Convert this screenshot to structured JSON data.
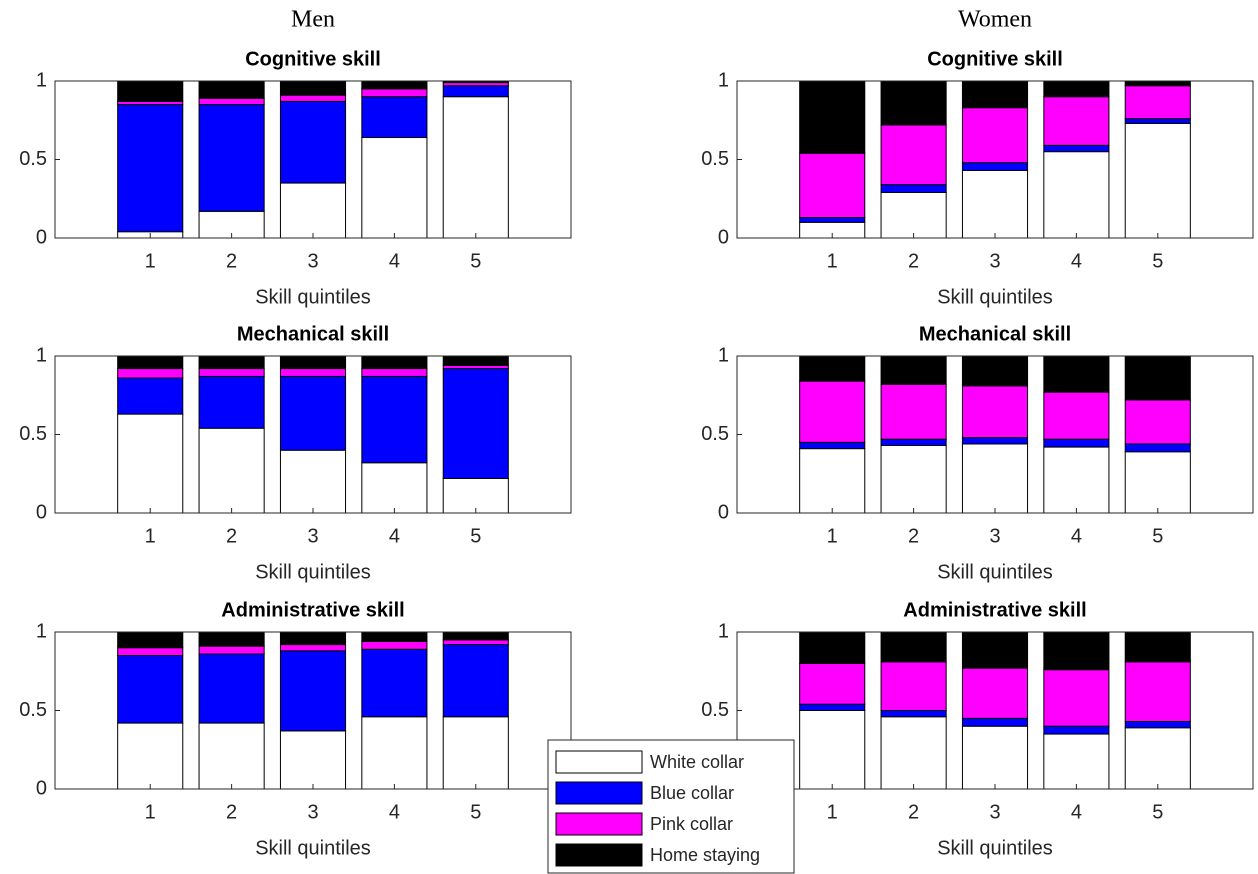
{
  "chart_data": [
    {
      "type": "stacked_bar",
      "subtitle": "Men",
      "title": "Cognitive skill",
      "xlabel": "Skill quintiles",
      "categories": [
        "1",
        "2",
        "3",
        "4",
        "5"
      ],
      "ylim": [
        0,
        1
      ],
      "yticks": [
        0,
        0.5,
        1
      ],
      "series": [
        {
          "name": "White collar",
          "color": "#ffffff",
          "values": [
            0.04,
            0.17,
            0.35,
            0.64,
            0.9
          ]
        },
        {
          "name": "Blue collar",
          "color": "#0000ff",
          "values": [
            0.81,
            0.68,
            0.52,
            0.26,
            0.07
          ]
        },
        {
          "name": "Pink collar",
          "color": "#ff00ff",
          "values": [
            0.02,
            0.04,
            0.04,
            0.05,
            0.02
          ]
        },
        {
          "name": "Home staying",
          "color": "#000000",
          "values": [
            0.13,
            0.11,
            0.09,
            0.05,
            0.01
          ]
        }
      ]
    },
    {
      "type": "stacked_bar",
      "subtitle": "Women",
      "title": "Cognitive skill",
      "xlabel": "Skill quintiles",
      "categories": [
        "1",
        "2",
        "3",
        "4",
        "5"
      ],
      "ylim": [
        0,
        1
      ],
      "yticks": [
        0,
        0.5,
        1
      ],
      "series": [
        {
          "name": "White collar",
          "color": "#ffffff",
          "values": [
            0.1,
            0.29,
            0.43,
            0.55,
            0.73
          ]
        },
        {
          "name": "Blue collar",
          "color": "#0000ff",
          "values": [
            0.03,
            0.05,
            0.05,
            0.04,
            0.03
          ]
        },
        {
          "name": "Pink collar",
          "color": "#ff00ff",
          "values": [
            0.41,
            0.38,
            0.35,
            0.31,
            0.21
          ]
        },
        {
          "name": "Home staying",
          "color": "#000000",
          "values": [
            0.46,
            0.28,
            0.17,
            0.1,
            0.03
          ]
        }
      ]
    },
    {
      "type": "stacked_bar",
      "title": "Mechanical skill",
      "xlabel": "Skill quintiles",
      "categories": [
        "1",
        "2",
        "3",
        "4",
        "5"
      ],
      "ylim": [
        0,
        1
      ],
      "yticks": [
        0,
        0.5,
        1
      ],
      "series": [
        {
          "name": "White collar",
          "color": "#ffffff",
          "values": [
            0.63,
            0.54,
            0.4,
            0.32,
            0.22
          ]
        },
        {
          "name": "Blue collar",
          "color": "#0000ff",
          "values": [
            0.23,
            0.33,
            0.47,
            0.55,
            0.7
          ]
        },
        {
          "name": "Pink collar",
          "color": "#ff00ff",
          "values": [
            0.06,
            0.05,
            0.05,
            0.05,
            0.02
          ]
        },
        {
          "name": "Home staying",
          "color": "#000000",
          "values": [
            0.08,
            0.08,
            0.08,
            0.08,
            0.06
          ]
        }
      ]
    },
    {
      "type": "stacked_bar",
      "title": "Mechanical skill",
      "xlabel": "Skill quintiles",
      "categories": [
        "1",
        "2",
        "3",
        "4",
        "5"
      ],
      "ylim": [
        0,
        1
      ],
      "yticks": [
        0,
        0.5,
        1
      ],
      "series": [
        {
          "name": "White collar",
          "color": "#ffffff",
          "values": [
            0.41,
            0.43,
            0.44,
            0.42,
            0.39
          ]
        },
        {
          "name": "Blue collar",
          "color": "#0000ff",
          "values": [
            0.04,
            0.04,
            0.04,
            0.05,
            0.05
          ]
        },
        {
          "name": "Pink collar",
          "color": "#ff00ff",
          "values": [
            0.39,
            0.35,
            0.33,
            0.3,
            0.28
          ]
        },
        {
          "name": "Home staying",
          "color": "#000000",
          "values": [
            0.16,
            0.18,
            0.19,
            0.23,
            0.28
          ]
        }
      ]
    },
    {
      "type": "stacked_bar",
      "title": "Administrative skill",
      "xlabel": "Skill quintiles",
      "categories": [
        "1",
        "2",
        "3",
        "4",
        "5"
      ],
      "ylim": [
        0,
        1
      ],
      "yticks": [
        0,
        0.5,
        1
      ],
      "series": [
        {
          "name": "White collar",
          "color": "#ffffff",
          "values": [
            0.42,
            0.42,
            0.37,
            0.46,
            0.46
          ]
        },
        {
          "name": "Blue collar",
          "color": "#0000ff",
          "values": [
            0.43,
            0.44,
            0.51,
            0.43,
            0.46
          ]
        },
        {
          "name": "Pink collar",
          "color": "#ff00ff",
          "values": [
            0.05,
            0.05,
            0.04,
            0.05,
            0.03
          ]
        },
        {
          "name": "Home staying",
          "color": "#000000",
          "values": [
            0.1,
            0.09,
            0.08,
            0.06,
            0.05
          ]
        }
      ]
    },
    {
      "type": "stacked_bar",
      "title": "Administrative skill",
      "xlabel": "Skill quintiles",
      "categories": [
        "1",
        "2",
        "3",
        "4",
        "5"
      ],
      "ylim": [
        0,
        1
      ],
      "yticks": [
        0,
        0.5,
        1
      ],
      "series": [
        {
          "name": "White collar",
          "color": "#ffffff",
          "values": [
            0.5,
            0.46,
            0.4,
            0.35,
            0.39
          ]
        },
        {
          "name": "Blue collar",
          "color": "#0000ff",
          "values": [
            0.04,
            0.04,
            0.05,
            0.05,
            0.04
          ]
        },
        {
          "name": "Pink collar",
          "color": "#ff00ff",
          "values": [
            0.26,
            0.31,
            0.32,
            0.36,
            0.38
          ]
        },
        {
          "name": "Home staying",
          "color": "#000000",
          "values": [
            0.2,
            0.19,
            0.23,
            0.24,
            0.19
          ]
        }
      ]
    }
  ]
}
